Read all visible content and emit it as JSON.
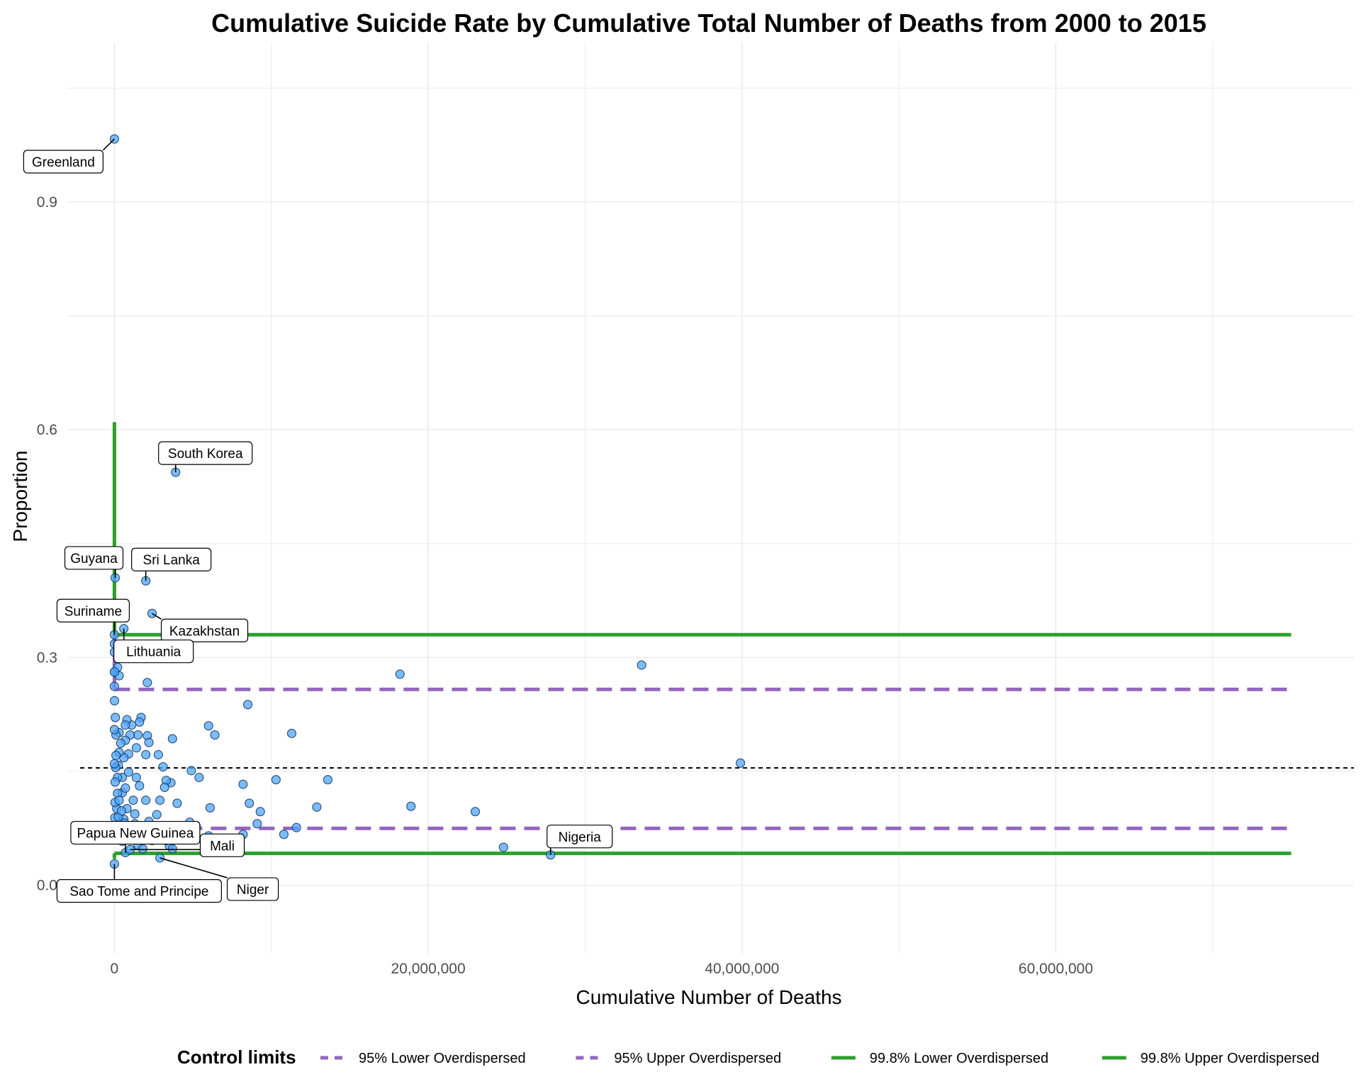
{
  "chart_data": {
    "type": "scatter",
    "title": "Cumulative Suicide Rate by Cumulative Total Number of Deaths from 2000 to 2015",
    "xlabel": "Cumulative Number of Deaths",
    "ylabel": "Proportion",
    "xlim": [
      -3000000,
      79000000
    ],
    "ylim": [
      -0.09,
      1.11
    ],
    "x_ticks": [
      0,
      20000000,
      40000000,
      60000000
    ],
    "x_tick_labels": [
      "0",
      "20,000,000",
      "40,000,000",
      "60,000,000"
    ],
    "y_ticks": [
      0.0,
      0.3,
      0.6,
      0.9
    ],
    "y_tick_labels": [
      "0.0",
      "0.3",
      "0.6",
      "0.9"
    ],
    "grid": true,
    "point_color": "#4da6ff",
    "reference_line": {
      "y": 0.1545,
      "style": "dotted",
      "color": "#000000"
    },
    "legend": {
      "title": "Control limits",
      "position": "bottom",
      "entries": [
        {
          "label": "95% Lower Overdispersed",
          "color": "#9467bd",
          "style": "dashed"
        },
        {
          "label": "95% Upper Overdispersed",
          "color": "#9467bd",
          "style": "dashed"
        },
        {
          "label": "99.8% Lower Overdispersed",
          "color": "#2ca02c",
          "style": "solid"
        },
        {
          "label": "99.8% Upper Overdispersed",
          "color": "#2ca02c",
          "style": "solid"
        }
      ]
    },
    "control_limits": {
      "lower_95": 0.075,
      "upper_95": 0.258,
      "lower_998": 0.042,
      "upper_998": 0.33,
      "x_end": 75000000,
      "upper_998_peak": 0.61
    },
    "annotations": [
      {
        "label": "Greenland",
        "x": 0,
        "y": 0.983
      },
      {
        "label": "South Korea",
        "x": 3900000,
        "y": 0.544
      },
      {
        "label": "Guyana",
        "x": 50000,
        "y": 0.405
      },
      {
        "label": "Sri Lanka",
        "x": 2000000,
        "y": 0.401
      },
      {
        "label": "Kazakhstan",
        "x": 2400000,
        "y": 0.358
      },
      {
        "label": "Suriname",
        "x": 0,
        "y": 0.33
      },
      {
        "label": "Lithuania",
        "x": 600000,
        "y": 0.338
      },
      {
        "label": "Papua New Guinea",
        "x": 700000,
        "y": 0.043
      },
      {
        "label": "Mali",
        "x": 1000000,
        "y": 0.047
      },
      {
        "label": "Sao Tome and Principe",
        "x": 0,
        "y": 0.028
      },
      {
        "label": "Niger",
        "x": 2900000,
        "y": 0.036
      },
      {
        "label": "Nigeria",
        "x": 27800000,
        "y": 0.04
      }
    ],
    "points": [
      [
        0,
        0.983
      ],
      [
        3900000,
        0.544
      ],
      [
        50000,
        0.405
      ],
      [
        2000000,
        0.401
      ],
      [
        2400000,
        0.358
      ],
      [
        0,
        0.33
      ],
      [
        600000,
        0.338
      ],
      [
        700000,
        0.043
      ],
      [
        1000000,
        0.047
      ],
      [
        0,
        0.028
      ],
      [
        2900000,
        0.036
      ],
      [
        27800000,
        0.04
      ],
      [
        33600000,
        0.29
      ],
      [
        18200000,
        0.278
      ],
      [
        39900000,
        0.161
      ],
      [
        24800000,
        0.05
      ],
      [
        23000000,
        0.097
      ],
      [
        18900000,
        0.104
      ],
      [
        11300000,
        0.2
      ],
      [
        10300000,
        0.139
      ],
      [
        13600000,
        0.139
      ],
      [
        12900000,
        0.103
      ],
      [
        11600000,
        0.076
      ],
      [
        10800000,
        0.067
      ],
      [
        8500000,
        0.238
      ],
      [
        8200000,
        0.133
      ],
      [
        8600000,
        0.108
      ],
      [
        9300000,
        0.097
      ],
      [
        9100000,
        0.081
      ],
      [
        8200000,
        0.067
      ],
      [
        6000000,
        0.21
      ],
      [
        6400000,
        0.198
      ],
      [
        5400000,
        0.142
      ],
      [
        4900000,
        0.151
      ],
      [
        6100000,
        0.102
      ],
      [
        5200000,
        0.078
      ],
      [
        6000000,
        0.065
      ],
      [
        3700000,
        0.193
      ],
      [
        4000000,
        0.108
      ],
      [
        3600000,
        0.135
      ],
      [
        3300000,
        0.138
      ],
      [
        3200000,
        0.129
      ],
      [
        3100000,
        0.156
      ],
      [
        2900000,
        0.112
      ],
      [
        2700000,
        0.093
      ],
      [
        2800000,
        0.172
      ],
      [
        2100000,
        0.267
      ],
      [
        2100000,
        0.197
      ],
      [
        2200000,
        0.188
      ],
      [
        2000000,
        0.172
      ],
      [
        2000000,
        0.112
      ],
      [
        1700000,
        0.221
      ],
      [
        1600000,
        0.215
      ],
      [
        1500000,
        0.198
      ],
      [
        1400000,
        0.181
      ],
      [
        1400000,
        0.142
      ],
      [
        1300000,
        0.094
      ],
      [
        1100000,
        0.211
      ],
      [
        1000000,
        0.198
      ],
      [
        900000,
        0.173
      ],
      [
        800000,
        0.218
      ],
      [
        700000,
        0.211
      ],
      [
        700000,
        0.191
      ],
      [
        600000,
        0.168
      ],
      [
        500000,
        0.142
      ],
      [
        500000,
        0.122
      ],
      [
        400000,
        0.187
      ],
      [
        300000,
        0.201
      ],
      [
        300000,
        0.175
      ],
      [
        250000,
        0.158
      ],
      [
        200000,
        0.142
      ],
      [
        200000,
        0.121
      ],
      [
        150000,
        0.101
      ],
      [
        100000,
        0.198
      ],
      [
        100000,
        0.171
      ],
      [
        80000,
        0.155
      ],
      [
        60000,
        0.221
      ],
      [
        50000,
        0.136
      ],
      [
        40000,
        0.109
      ],
      [
        30000,
        0.089
      ],
      [
        20000,
        0.077
      ],
      [
        10000,
        0.065
      ],
      [
        5000,
        0.243
      ],
      [
        5000,
        0.281
      ],
      [
        200000,
        0.287
      ],
      [
        0,
        0.262
      ],
      [
        0,
        0.307
      ],
      [
        0,
        0.318
      ],
      [
        300000,
        0.276
      ],
      [
        0,
        0.281
      ],
      [
        0,
        0.205
      ],
      [
        0,
        0.16
      ],
      [
        800000,
        0.101
      ],
      [
        600000,
        0.087
      ],
      [
        900000,
        0.073
      ],
      [
        1100000,
        0.061
      ],
      [
        1500000,
        0.053
      ],
      [
        1800000,
        0.048
      ],
      [
        1200000,
        0.112
      ],
      [
        1600000,
        0.131
      ],
      [
        2400000,
        0.059
      ],
      [
        3500000,
        0.052
      ],
      [
        4200000,
        0.061
      ],
      [
        4800000,
        0.083
      ],
      [
        2600000,
        0.07
      ],
      [
        500000,
        0.058
      ],
      [
        400000,
        0.077
      ],
      [
        1900000,
        0.066
      ],
      [
        3700000,
        0.048
      ],
      [
        700000,
        0.128
      ],
      [
        900000,
        0.149
      ],
      [
        300000,
        0.112
      ],
      [
        150000,
        0.062
      ],
      [
        250000,
        0.09
      ],
      [
        450000,
        0.098
      ],
      [
        650000,
        0.082
      ],
      [
        1300000,
        0.081
      ],
      [
        2200000,
        0.084
      ],
      [
        2800000,
        0.076
      ],
      [
        3300000,
        0.059
      ]
    ]
  }
}
